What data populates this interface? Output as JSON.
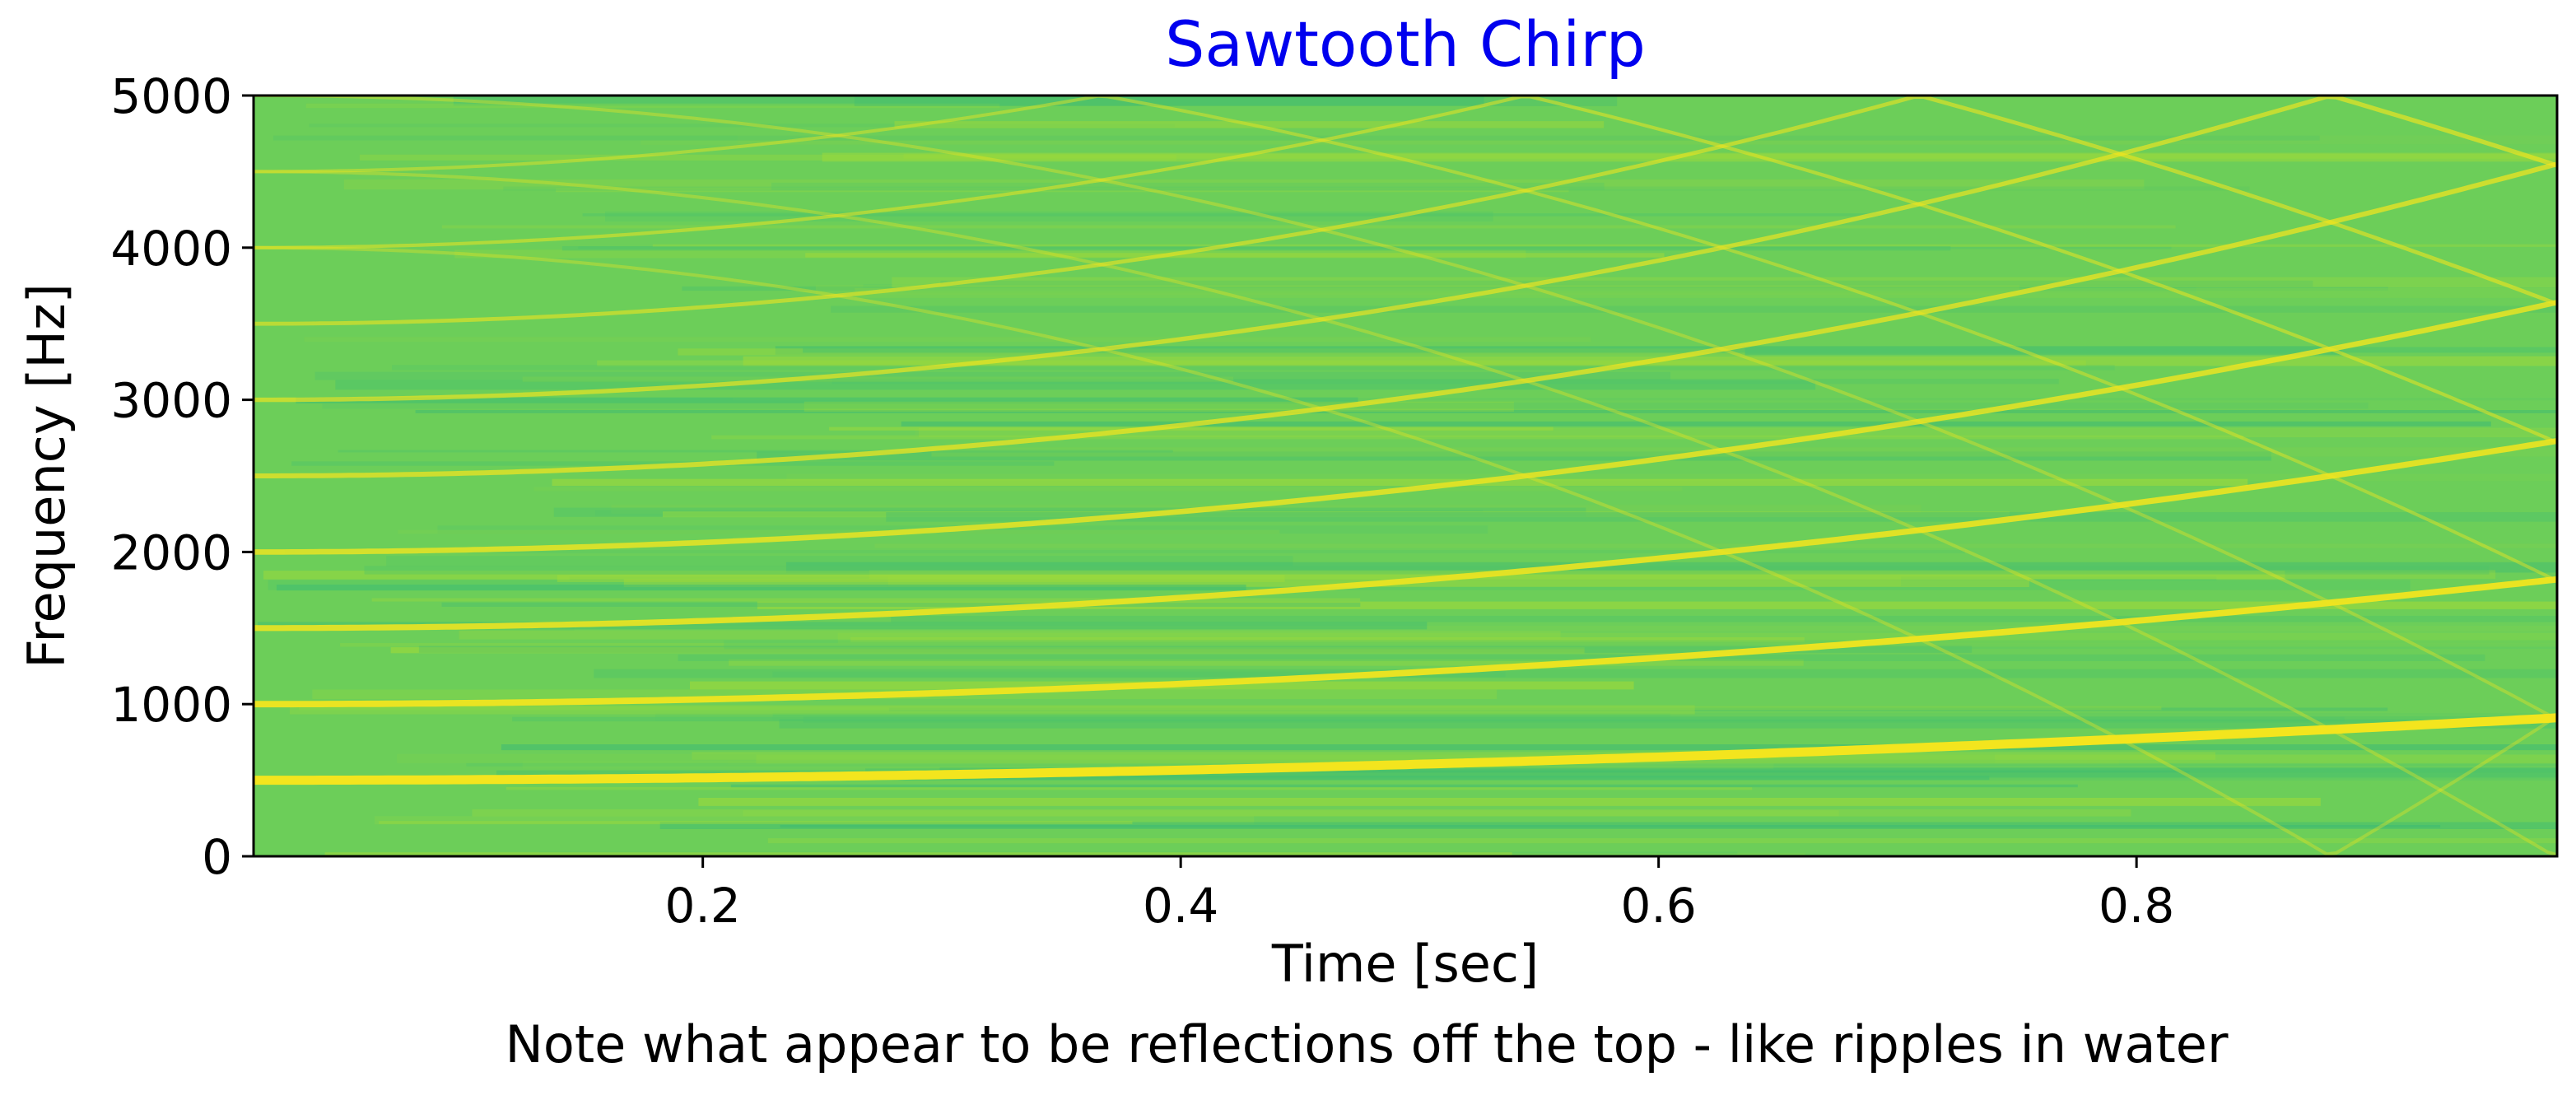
{
  "chart_data": {
    "type": "heatmap",
    "title": "Sawtooth Chirp",
    "title_color": "#0000ee",
    "xlabel": "Time [sec]",
    "ylabel": "Frequency [Hz]",
    "caption": "Note what appear to be reflections off the top - like ripples in water",
    "xlim": [
      0.012,
      0.976
    ],
    "ylim": [
      0,
      5000
    ],
    "x_ticks": [
      {
        "value": 0.2,
        "label": "0.2"
      },
      {
        "value": 0.4,
        "label": "0.4"
      },
      {
        "value": 0.6,
        "label": "0.6"
      },
      {
        "value": 0.8,
        "label": "0.8"
      }
    ],
    "y_ticks": [
      {
        "value": 0,
        "label": "0"
      },
      {
        "value": 1000,
        "label": "1000"
      },
      {
        "value": 2000,
        "label": "2000"
      },
      {
        "value": 3000,
        "label": "3000"
      },
      {
        "value": 4000,
        "label": "4000"
      },
      {
        "value": 5000,
        "label": "5000"
      }
    ],
    "grid": false,
    "colormap": "viridis",
    "background_color": "#6cce59",
    "ridge_color": "#f3e51e",
    "chirp": {
      "f0": 500,
      "f1": 910,
      "t_start": 0.012,
      "t_end": 0.976,
      "method": "quadratic",
      "harmonics": [
        1,
        2,
        3,
        4,
        5,
        6,
        7,
        8,
        9,
        10,
        11,
        12
      ],
      "aliases_above": 5000
    }
  }
}
